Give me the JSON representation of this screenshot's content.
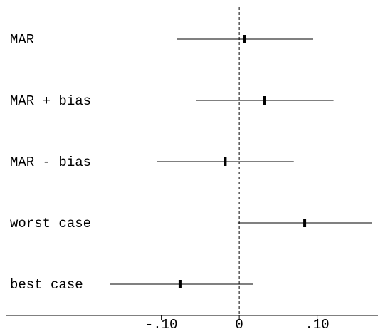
{
  "chart_data": {
    "type": "forest",
    "categories": [
      "MAR",
      "MAR + bias",
      "MAR - bias",
      "worst case",
      "best case"
    ],
    "estimates": [
      0.007,
      0.032,
      -0.018,
      0.084,
      -0.076
    ],
    "lower": [
      -0.08,
      -0.055,
      -0.106,
      -0.002,
      -0.166
    ],
    "upper": [
      0.094,
      0.121,
      0.07,
      0.17,
      0.018
    ],
    "xlim": [
      -0.307,
      0.178
    ],
    "xticks": [
      -0.1,
      0,
      0.1
    ],
    "xtick_labels": [
      "-.10",
      "0",
      ".10"
    ],
    "reference_line": 0,
    "reference_line_style": "dashed",
    "grid": false,
    "title": "",
    "xlabel": "",
    "ylabel": ""
  }
}
